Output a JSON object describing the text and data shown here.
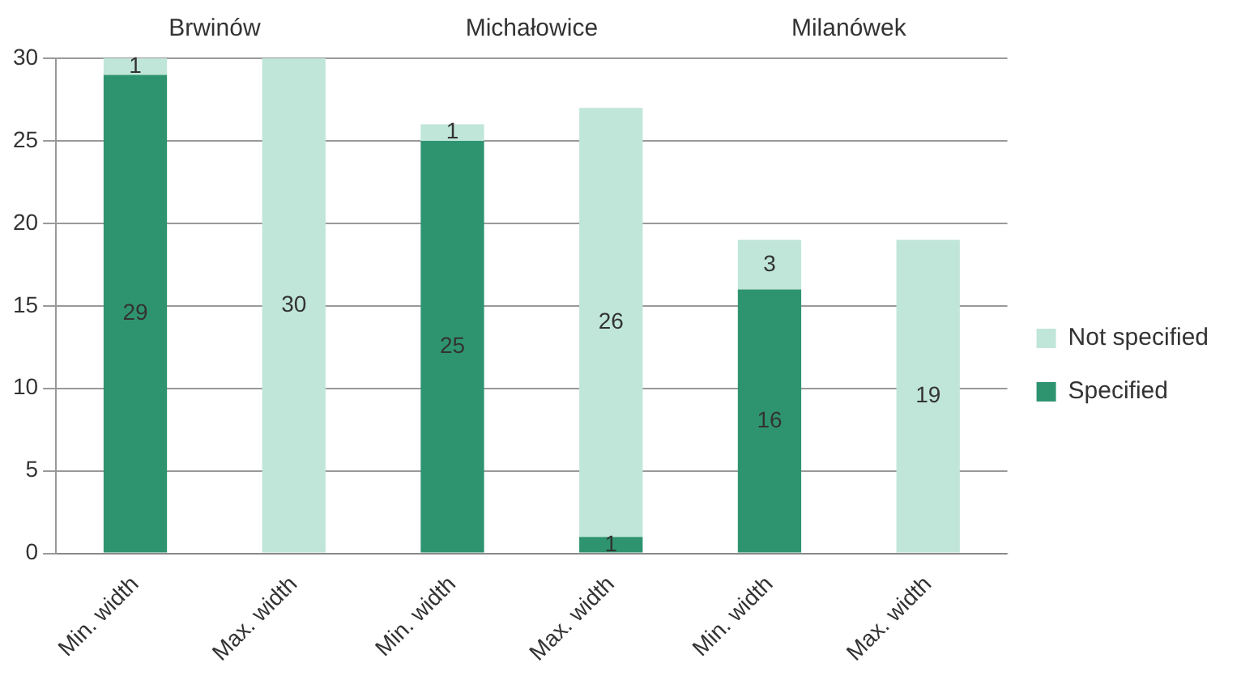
{
  "chart_data": {
    "type": "bar",
    "stacked": true,
    "categories": [
      "Min. width",
      "Max. width",
      "Min. width",
      "Max. width",
      "Min. width",
      "Max. width"
    ],
    "series": [
      {
        "name": "Specified",
        "color": "#2e9470",
        "values": [
          29,
          null,
          25,
          1,
          16,
          null
        ],
        "value_labels": [
          "29",
          null,
          "25",
          "1",
          "16",
          null
        ]
      },
      {
        "name": "Not specified",
        "color": "#c0e6d9",
        "values": [
          1,
          30,
          1,
          26,
          3,
          19
        ],
        "value_labels": [
          "1",
          "30",
          "1",
          "26",
          "3",
          "19"
        ]
      }
    ],
    "annotations": [
      "Brwinów",
      "Michałowice",
      "Milanówek"
    ],
    "ylim": [
      0,
      30
    ],
    "yticks": [
      0,
      5,
      10,
      15,
      20,
      25,
      30
    ],
    "grid": "y",
    "legend": "right"
  }
}
